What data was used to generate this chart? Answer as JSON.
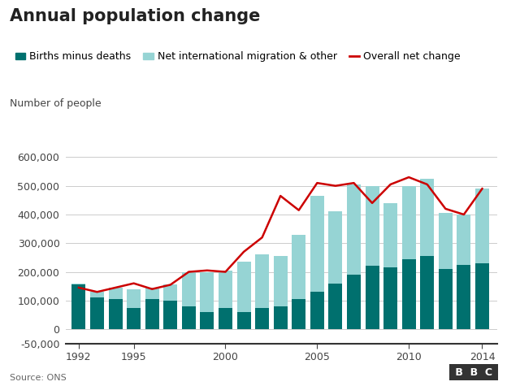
{
  "title": "Annual population change",
  "ylabel_text": "Number of people",
  "source": "Source: ONS",
  "years": [
    1992,
    1993,
    1994,
    1995,
    1996,
    1997,
    1998,
    1999,
    2000,
    2001,
    2002,
    2003,
    2004,
    2005,
    2006,
    2007,
    2008,
    2009,
    2010,
    2011,
    2012,
    2013,
    2014
  ],
  "births_minus_deaths": [
    160000,
    110000,
    105000,
    75000,
    105000,
    100000,
    80000,
    60000,
    75000,
    60000,
    75000,
    80000,
    105000,
    130000,
    160000,
    190000,
    220000,
    215000,
    245000,
    255000,
    210000,
    225000,
    230000
  ],
  "net_migration": [
    -5000,
    20000,
    40000,
    65000,
    40000,
    55000,
    120000,
    140000,
    130000,
    175000,
    185000,
    175000,
    225000,
    335000,
    250000,
    315000,
    280000,
    225000,
    255000,
    270000,
    195000,
    175000,
    260000
  ],
  "overall_net_change": [
    145000,
    130000,
    145000,
    160000,
    140000,
    155000,
    200000,
    205000,
    200000,
    270000,
    320000,
    465000,
    415000,
    510000,
    500000,
    510000,
    440000,
    505000,
    530000,
    505000,
    420000,
    400000,
    490000
  ],
  "color_births": "#00706e",
  "color_migration": "#96d4d4",
  "color_line": "#cc0000",
  "ylim": [
    -50000,
    650000
  ],
  "yticks": [
    -50000,
    0,
    100000,
    200000,
    300000,
    400000,
    500000,
    600000
  ],
  "xticks": [
    1992,
    1995,
    2000,
    2005,
    2010,
    2014
  ],
  "background": "#ffffff",
  "grid_color": "#cccccc",
  "title_fontsize": 15,
  "legend_fontsize": 9,
  "tick_fontsize": 9,
  "bbc_logo_text": "BBC"
}
